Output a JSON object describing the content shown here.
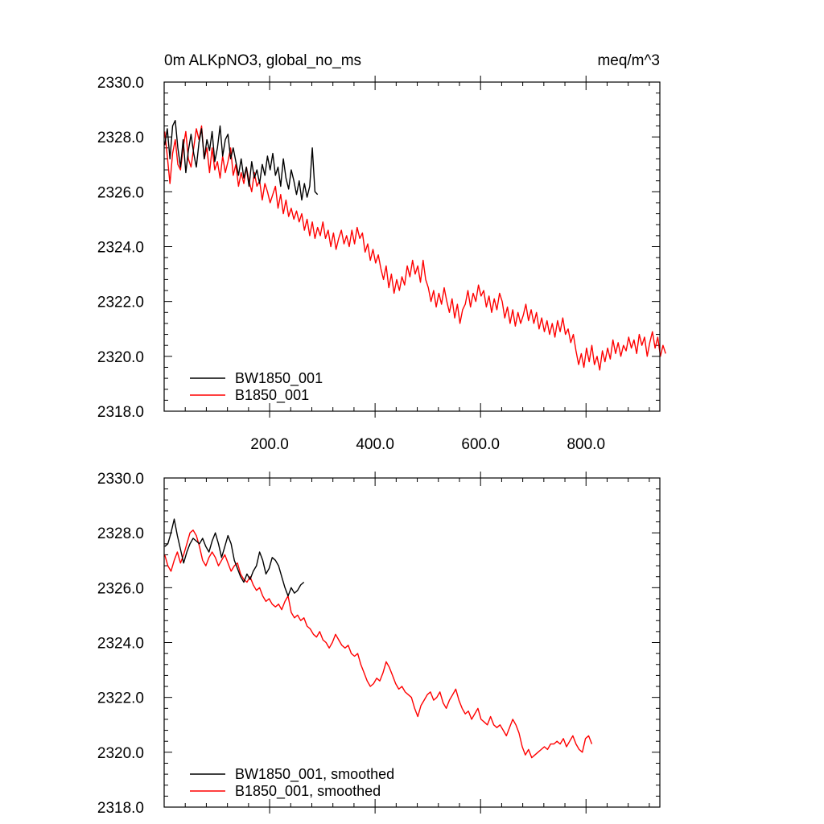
{
  "chart_data": [
    {
      "type": "line",
      "panel": "top",
      "title_left": "0m ALKpNO3, global_no_ms",
      "title_right": "meq/m^3",
      "xlim": [
        0,
        940
      ],
      "ylim": [
        2318,
        2330
      ],
      "x_tick_labels": [
        "200.0",
        "400.0",
        "600.0",
        "800.0"
      ],
      "x_ticks": [
        200,
        400,
        600,
        800
      ],
      "y_tick_labels": [
        "2330.0",
        "2328.0",
        "2326.0",
        "2324.0",
        "2322.0",
        "2320.0",
        "2318.0"
      ],
      "y_ticks": [
        2330,
        2328,
        2326,
        2324,
        2322,
        2320,
        2318
      ],
      "legend_position": "bottom-left",
      "series": [
        {
          "name": "BW1850_001",
          "color": "#000000",
          "x_start": 1,
          "x_step": 5,
          "values": [
            2327.7,
            2328.3,
            2327.2,
            2328.4,
            2328.6,
            2327.6,
            2326.9,
            2327.9,
            2326.7,
            2327.5,
            2328.1,
            2327.4,
            2326.9,
            2327.8,
            2328.3,
            2327.2,
            2327.9,
            2327.5,
            2328.2,
            2327.1,
            2327.6,
            2328.4,
            2327.3,
            2327.9,
            2328.1,
            2327.2,
            2327.6,
            2327.1,
            2326.6,
            2327.2,
            2326.5,
            2326.9,
            2326.2,
            2327.1,
            2326.5,
            2326.8,
            2326.3,
            2327.0,
            2326.6,
            2327.3,
            2326.8,
            2327.4,
            2326.6,
            2326.9,
            2326.2,
            2327.2,
            2326.5,
            2326.1,
            2326.8,
            2326.4,
            2325.9,
            2326.4,
            2325.7,
            2326.3,
            2325.8,
            2326.2,
            2327.6,
            2326.0,
            2325.9
          ]
        },
        {
          "name": "B1850_001",
          "color": "#ff0000",
          "x_start": 1,
          "x_step": 5,
          "values": [
            2328.2,
            2327.3,
            2326.3,
            2327.4,
            2327.9,
            2327.0,
            2326.8,
            2327.6,
            2328.2,
            2327.2,
            2326.9,
            2327.6,
            2328.3,
            2327.9,
            2328.4,
            2327.2,
            2327.6,
            2326.7,
            2327.6,
            2326.8,
            2327.1,
            2326.5,
            2327.3,
            2326.7,
            2327.1,
            2327.6,
            2326.6,
            2327.0,
            2326.2,
            2326.7,
            2326.3,
            2326.9,
            2326.4,
            2326.0,
            2326.7,
            2326.2,
            2326.4,
            2325.7,
            2326.3,
            2326.0,
            2325.6,
            2325.9,
            2326.2,
            2325.4,
            2325.9,
            2325.2,
            2325.7,
            2325.1,
            2325.4,
            2325.0,
            2325.3,
            2324.9,
            2325.2,
            2324.6,
            2325.0,
            2324.4,
            2324.9,
            2324.3,
            2324.7,
            2324.4,
            2324.9,
            2324.3,
            2324.6,
            2324.0,
            2324.5,
            2323.9,
            2324.3,
            2324.6,
            2324.1,
            2324.4,
            2324.0,
            2324.6,
            2324.1,
            2324.7,
            2324.3,
            2324.5,
            2323.8,
            2324.1,
            2323.5,
            2323.9,
            2323.4,
            2323.7,
            2323.2,
            2322.8,
            2323.3,
            2322.5,
            2323.0,
            2322.3,
            2322.8,
            2322.4,
            2322.9,
            2322.6,
            2323.3,
            2322.9,
            2323.5,
            2323.0,
            2323.3,
            2322.7,
            2323.5,
            2322.8,
            2322.5,
            2322.0,
            2322.4,
            2321.8,
            2322.3,
            2321.9,
            2322.5,
            2322.0,
            2321.6,
            2322.1,
            2321.4,
            2321.9,
            2321.2,
            2321.7,
            2321.9,
            2322.4,
            2321.8,
            2322.3,
            2322.0,
            2322.6,
            2322.2,
            2322.4,
            2321.8,
            2322.2,
            2321.6,
            2322.1,
            2321.7,
            2322.3,
            2322.0,
            2321.4,
            2321.8,
            2321.2,
            2321.7,
            2321.1,
            2321.6,
            2321.2,
            2321.5,
            2321.9,
            2321.3,
            2321.7,
            2321.2,
            2321.6,
            2321.0,
            2321.4,
            2320.9,
            2321.3,
            2320.8,
            2321.2,
            2320.7,
            2321.3,
            2320.9,
            2321.4,
            2320.8,
            2321.0,
            2320.5,
            2320.8,
            2320.2,
            2319.7,
            2320.1,
            2319.6,
            2320.3,
            2319.8,
            2320.4,
            2319.7,
            2320.0,
            2319.5,
            2320.2,
            2319.8,
            2320.3,
            2319.9,
            2320.6,
            2320.1,
            2320.5,
            2320.0,
            2320.4,
            2320.2,
            2320.7,
            2320.3,
            2320.6,
            2320.1,
            2320.8,
            2320.4,
            2320.7,
            2320.0,
            2320.5,
            2320.9,
            2320.3,
            2320.7,
            2320.0,
            2320.4,
            2320.1
          ]
        }
      ]
    },
    {
      "type": "line",
      "panel": "bottom",
      "xlim": [
        0,
        940
      ],
      "ylim": [
        2318,
        2330
      ],
      "y_tick_labels": [
        "2330.0",
        "2328.0",
        "2326.0",
        "2324.0",
        "2322.0",
        "2320.0",
        "2318.0"
      ],
      "y_ticks": [
        2330,
        2328,
        2326,
        2324,
        2322,
        2320,
        2318
      ],
      "x_ticks": [
        200,
        400,
        600,
        800
      ],
      "legend_position": "bottom-left",
      "series": [
        {
          "name": "BW1850_001, smoothed",
          "color": "#000000",
          "x_start": 1,
          "x_step": 6,
          "values": [
            2327.5,
            2327.6,
            2328.0,
            2328.5,
            2327.9,
            2327.4,
            2326.9,
            2327.3,
            2327.6,
            2327.8,
            2327.7,
            2327.6,
            2327.8,
            2327.5,
            2327.3,
            2327.7,
            2328.0,
            2327.6,
            2327.1,
            2327.5,
            2327.9,
            2327.6,
            2327.0,
            2326.7,
            2326.4,
            2326.2,
            2326.5,
            2326.3,
            2326.6,
            2326.8,
            2327.3,
            2327.0,
            2326.5,
            2326.7,
            2327.1,
            2327.0,
            2326.8,
            2326.4,
            2326.0,
            2325.7,
            2326.0,
            2325.8,
            2325.9,
            2326.1,
            2326.2
          ]
        },
        {
          "name": "B1850_001, smoothed",
          "color": "#ff0000",
          "x_start": 1,
          "x_step": 6,
          "values": [
            2327.2,
            2326.8,
            2326.6,
            2327.0,
            2327.3,
            2326.9,
            2327.2,
            2327.6,
            2328.0,
            2328.1,
            2327.9,
            2327.5,
            2327.0,
            2326.8,
            2327.1,
            2327.3,
            2327.1,
            2326.8,
            2327.0,
            2327.2,
            2326.9,
            2326.6,
            2326.8,
            2326.9,
            2326.5,
            2326.3,
            2326.2,
            2326.4,
            2326.1,
            2325.9,
            2326.0,
            2325.7,
            2325.5,
            2325.6,
            2325.4,
            2325.3,
            2325.4,
            2325.2,
            2325.5,
            2325.7,
            2325.1,
            2324.9,
            2325.0,
            2324.8,
            2324.9,
            2324.6,
            2324.5,
            2324.3,
            2324.2,
            2324.4,
            2324.1,
            2324.0,
            2323.8,
            2324.0,
            2324.3,
            2324.1,
            2323.9,
            2323.8,
            2323.9,
            2323.6,
            2323.5,
            2323.6,
            2323.2,
            2322.9,
            2322.6,
            2322.4,
            2322.5,
            2322.7,
            2322.6,
            2322.9,
            2323.3,
            2323.1,
            2322.8,
            2322.5,
            2322.3,
            2322.4,
            2322.2,
            2322.1,
            2322.0,
            2321.6,
            2321.3,
            2321.7,
            2321.9,
            2322.1,
            2322.2,
            2321.9,
            2322.0,
            2322.2,
            2321.8,
            2321.6,
            2321.9,
            2322.1,
            2322.3,
            2321.9,
            2321.6,
            2321.4,
            2321.5,
            2321.2,
            2321.4,
            2321.6,
            2321.2,
            2321.1,
            2321.0,
            2321.3,
            2321.0,
            2320.9,
            2321.0,
            2320.8,
            2320.6,
            2320.9,
            2321.2,
            2321.0,
            2320.7,
            2320.2,
            2319.9,
            2320.1,
            2319.8,
            2319.9,
            2320.0,
            2320.1,
            2320.2,
            2320.1,
            2320.3,
            2320.3,
            2320.4,
            2320.3,
            2320.5,
            2320.2,
            2320.4,
            2320.6,
            2320.3,
            2320.1,
            2320.0,
            2320.5,
            2320.6,
            2320.3
          ]
        }
      ]
    }
  ]
}
